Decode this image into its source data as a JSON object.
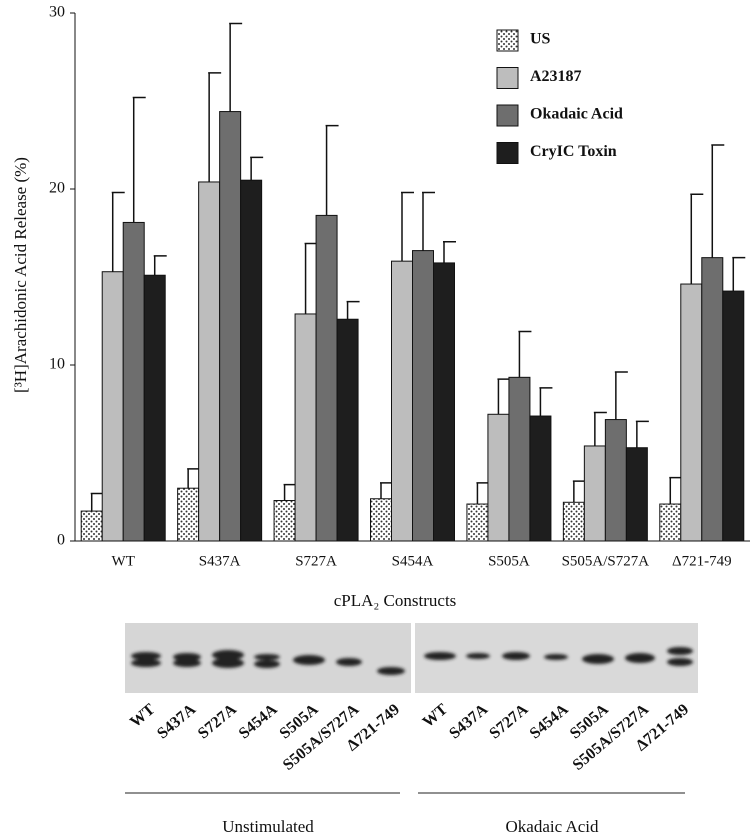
{
  "chart_data": {
    "type": "bar",
    "y_label": "[³H]Arachidonic Acid Release (%)",
    "x_label": "cPLA₂ Constructs",
    "categories": [
      "WT",
      "S437A",
      "S727A",
      "S454A",
      "S505A",
      "S505A/S727A",
      "Δ721-749"
    ],
    "series": [
      {
        "name": "US",
        "color": "#ffffff",
        "hatch": "dots",
        "values": [
          1.7,
          3.0,
          2.3,
          2.4,
          2.1,
          2.2,
          2.1
        ],
        "errors": [
          1.0,
          1.1,
          0.9,
          0.9,
          1.2,
          1.2,
          1.5
        ]
      },
      {
        "name": "A23187",
        "color": "#bdbdbd",
        "values": [
          15.3,
          20.4,
          12.9,
          15.9,
          7.2,
          5.4,
          14.6
        ],
        "errors": [
          4.5,
          6.2,
          4.0,
          3.9,
          2.0,
          1.9,
          5.1
        ]
      },
      {
        "name": "Okadaic Acid",
        "color": "#6e6e6e",
        "values": [
          18.1,
          24.4,
          18.5,
          16.5,
          9.3,
          6.9,
          16.1
        ],
        "errors": [
          7.1,
          5.0,
          5.1,
          3.3,
          2.6,
          2.7,
          6.4
        ]
      },
      {
        "name": "CryIC Toxin",
        "color": "#1e1e1e",
        "values": [
          15.1,
          20.5,
          12.6,
          15.8,
          7.1,
          5.3,
          14.2
        ],
        "errors": [
          1.1,
          1.3,
          1.0,
          1.2,
          1.6,
          1.5,
          1.9
        ]
      }
    ],
    "ylim": [
      0,
      30
    ],
    "yticks": [
      0,
      10,
      20,
      30
    ],
    "legend": "upper right"
  },
  "blot": {
    "lanes_left": [
      "WT",
      "S437A",
      "S727A",
      "S454A",
      "S505A",
      "S505A/S727A",
      "Δ721-749"
    ],
    "lanes_right": [
      "WT",
      "S437A",
      "S727A",
      "S454A",
      "S505A",
      "S505A/S727A",
      "Δ721-749"
    ],
    "groups": [
      "Unstimulated",
      "Okadaic Acid"
    ]
  }
}
